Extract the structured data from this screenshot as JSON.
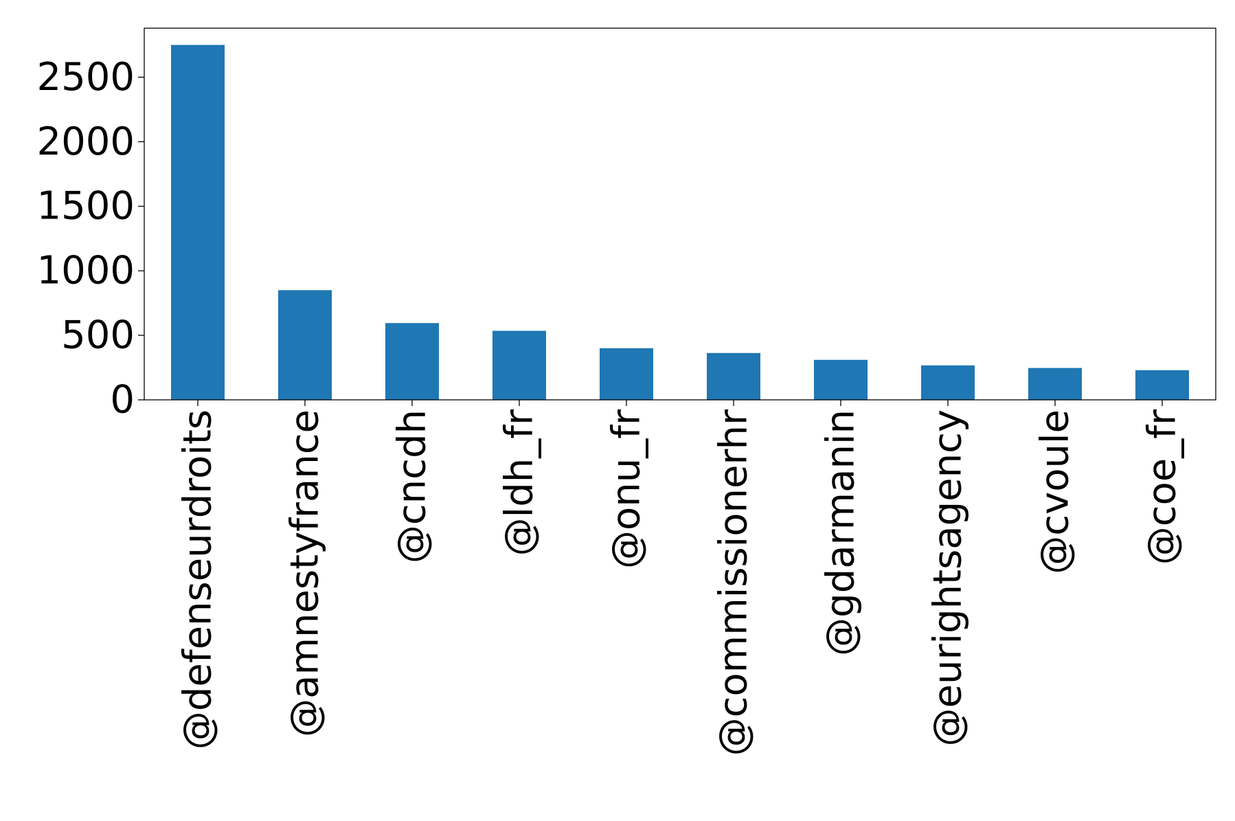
{
  "chart_data": {
    "type": "bar",
    "title": "",
    "xlabel": "",
    "ylabel": "",
    "categories": [
      "@defenseurdroits",
      "@amnestyfrance",
      "@cncdh",
      "@ldh_fr",
      "@onu_fr",
      "@commissionerhr",
      "@gdarmanin",
      "@eurightsagency",
      "@cvoule",
      "@coe_fr"
    ],
    "values": [
      2750,
      850,
      595,
      535,
      400,
      363,
      310,
      267,
      247,
      230
    ],
    "ylim": [
      0,
      2880
    ],
    "yticks": [
      0,
      500,
      1000,
      1500,
      2000,
      2500
    ],
    "bar_color": "#1f77b4",
    "grid": false,
    "legend": "none"
  }
}
